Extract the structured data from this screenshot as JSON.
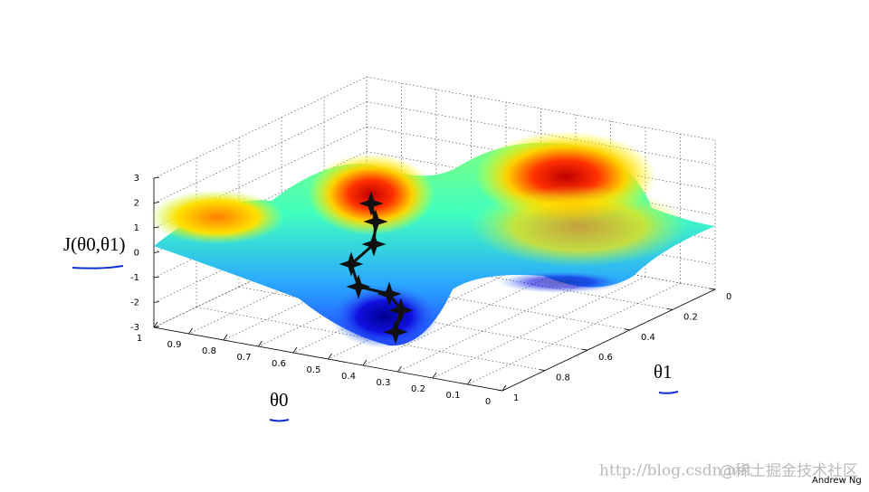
{
  "chart_data": {
    "type": "surface3d",
    "zlabel": "J(θ0,θ1)",
    "xlabel": "θ0",
    "ylabel": "θ1",
    "zlim": [
      -3,
      3
    ],
    "zticks": [
      -3,
      -2,
      -1,
      0,
      1,
      2,
      3
    ],
    "xlim": [
      0,
      1
    ],
    "xticks": [
      0,
      0.1,
      0.2,
      0.3,
      0.4,
      0.5,
      0.6,
      0.7,
      0.8,
      0.9,
      1
    ],
    "ylim": [
      0,
      1
    ],
    "yticks": [
      0,
      0.2,
      0.4,
      0.6,
      0.8,
      1
    ],
    "grid": true,
    "annotations": [
      "Andrew Ng",
      "http://blog.csdn.net",
      "@稀土掘金技术社区"
    ]
  }
}
